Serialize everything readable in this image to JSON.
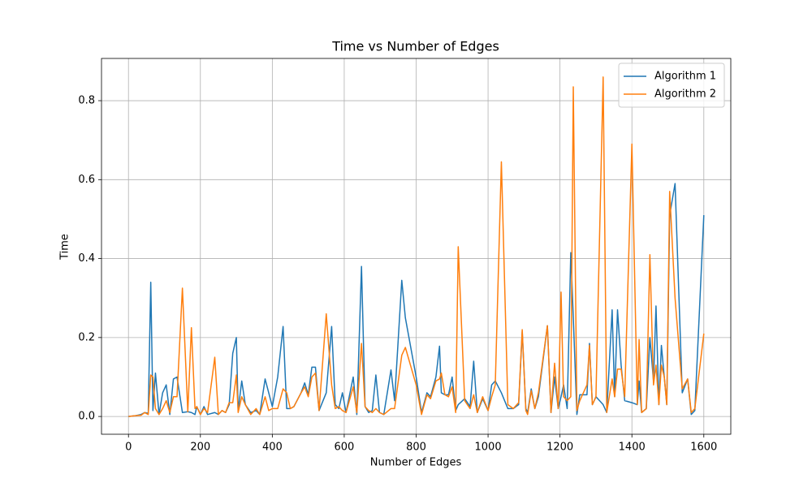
{
  "chart_data": {
    "type": "line",
    "title": "Time vs Number of Edges",
    "x_label": "Number of Edges",
    "y_label": "Time",
    "x": [
      0,
      20,
      35,
      45,
      55,
      62,
      68,
      75,
      85,
      95,
      105,
      115,
      125,
      135,
      150,
      165,
      175,
      185,
      190,
      200,
      210,
      220,
      240,
      250,
      260,
      270,
      280,
      290,
      300,
      305,
      315,
      325,
      340,
      355,
      365,
      380,
      390,
      400,
      415,
      430,
      440,
      450,
      460,
      480,
      490,
      500,
      510,
      520,
      530,
      550,
      565,
      575,
      585,
      595,
      605,
      625,
      635,
      648,
      658,
      668,
      678,
      688,
      698,
      710,
      730,
      740,
      760,
      770,
      800,
      815,
      830,
      840,
      855,
      865,
      870,
      880,
      890,
      900,
      910,
      917,
      935,
      950,
      960,
      970,
      985,
      1000,
      1010,
      1020,
      1037,
      1055,
      1070,
      1085,
      1095,
      1105,
      1110,
      1120,
      1130,
      1140,
      1165,
      1175,
      1185,
      1195,
      1203,
      1210,
      1220,
      1230,
      1237,
      1247,
      1255,
      1275,
      1282,
      1290,
      1300,
      1320,
      1330,
      1345,
      1352,
      1360,
      1370,
      1380,
      1400,
      1415,
      1420,
      1427,
      1440,
      1450,
      1460,
      1467,
      1475,
      1482,
      1490,
      1497,
      1505,
      1520,
      1540,
      1555,
      1565,
      1575,
      1600
    ],
    "series": [
      {
        "name": "Algorithm 1",
        "color": "#1f77b4",
        "values": [
          0.0,
          0.002,
          0.005,
          0.01,
          0.008,
          0.34,
          0.015,
          0.11,
          0.005,
          0.06,
          0.08,
          0.005,
          0.095,
          0.1,
          0.01,
          0.012,
          0.01,
          0.005,
          0.025,
          0.005,
          0.025,
          0.005,
          0.01,
          0.005,
          0.015,
          0.01,
          0.03,
          0.16,
          0.2,
          0.015,
          0.09,
          0.03,
          0.01,
          0.015,
          0.005,
          0.095,
          0.06,
          0.025,
          0.1,
          0.228,
          0.02,
          0.02,
          0.025,
          0.06,
          0.085,
          0.055,
          0.125,
          0.125,
          0.015,
          0.06,
          0.228,
          0.03,
          0.02,
          0.06,
          0.01,
          0.1,
          0.005,
          0.38,
          0.025,
          0.01,
          0.015,
          0.105,
          0.01,
          0.005,
          0.118,
          0.04,
          0.345,
          0.25,
          0.1,
          0.01,
          0.06,
          0.05,
          0.1,
          0.178,
          0.06,
          0.055,
          0.055,
          0.1,
          0.015,
          0.03,
          0.045,
          0.025,
          0.14,
          0.01,
          0.045,
          0.015,
          0.08,
          0.09,
          0.06,
          0.02,
          0.02,
          0.03,
          0.215,
          0.02,
          0.01,
          0.07,
          0.02,
          0.05,
          0.23,
          0.01,
          0.1,
          0.02,
          0.05,
          0.08,
          0.02,
          0.415,
          0.25,
          0.005,
          0.055,
          0.055,
          0.185,
          0.03,
          0.05,
          0.03,
          0.01,
          0.27,
          0.05,
          0.27,
          0.13,
          0.04,
          0.035,
          0.03,
          0.09,
          0.01,
          0.02,
          0.2,
          0.09,
          0.28,
          0.03,
          0.18,
          0.1,
          0.03,
          0.51,
          0.59,
          0.06,
          0.095,
          0.005,
          0.015,
          0.51
        ]
      },
      {
        "name": "Algorithm 2",
        "color": "#ff7f0e",
        "values": [
          0.0,
          0.002,
          0.003,
          0.01,
          0.005,
          0.105,
          0.1,
          0.02,
          0.005,
          0.02,
          0.04,
          0.01,
          0.05,
          0.05,
          0.325,
          0.012,
          0.225,
          0.02,
          0.025,
          0.005,
          0.02,
          0.01,
          0.15,
          0.005,
          0.015,
          0.01,
          0.035,
          0.035,
          0.105,
          0.01,
          0.05,
          0.03,
          0.005,
          0.02,
          0.005,
          0.05,
          0.015,
          0.02,
          0.02,
          0.07,
          0.06,
          0.02,
          0.025,
          0.06,
          0.075,
          0.05,
          0.1,
          0.11,
          0.015,
          0.26,
          0.08,
          0.02,
          0.025,
          0.015,
          0.01,
          0.075,
          0.01,
          0.185,
          0.025,
          0.015,
          0.01,
          0.02,
          0.01,
          0.005,
          0.02,
          0.02,
          0.155,
          0.175,
          0.08,
          0.005,
          0.055,
          0.045,
          0.09,
          0.095,
          0.11,
          0.055,
          0.05,
          0.075,
          0.01,
          0.43,
          0.04,
          0.02,
          0.055,
          0.01,
          0.05,
          0.015,
          0.05,
          0.08,
          0.645,
          0.03,
          0.02,
          0.035,
          0.22,
          0.015,
          0.005,
          0.065,
          0.02,
          0.06,
          0.23,
          0.01,
          0.135,
          0.02,
          0.315,
          0.05,
          0.04,
          0.05,
          0.835,
          0.015,
          0.04,
          0.08,
          0.18,
          0.03,
          0.05,
          0.86,
          0.01,
          0.095,
          0.05,
          0.12,
          0.12,
          0.05,
          0.69,
          0.03,
          0.195,
          0.01,
          0.02,
          0.41,
          0.08,
          0.13,
          0.03,
          0.13,
          0.1,
          0.03,
          0.57,
          0.3,
          0.07,
          0.095,
          0.01,
          0.02,
          0.21
        ]
      }
    ],
    "xlim": [
      -75,
      1675
    ],
    "ylim": [
      -0.045,
      0.907
    ],
    "xticks": [
      0,
      200,
      400,
      600,
      800,
      1000,
      1200,
      1400,
      1600
    ],
    "yticks": [
      {
        "value": 0,
        "label": "0.0"
      },
      {
        "value": 0.2,
        "label": "0.2"
      },
      {
        "value": 0.4,
        "label": "0.4"
      },
      {
        "value": 0.6,
        "label": "0.6"
      },
      {
        "value": 0.8,
        "label": "0.8"
      }
    ],
    "grid": true,
    "legend_position": "upper right"
  }
}
